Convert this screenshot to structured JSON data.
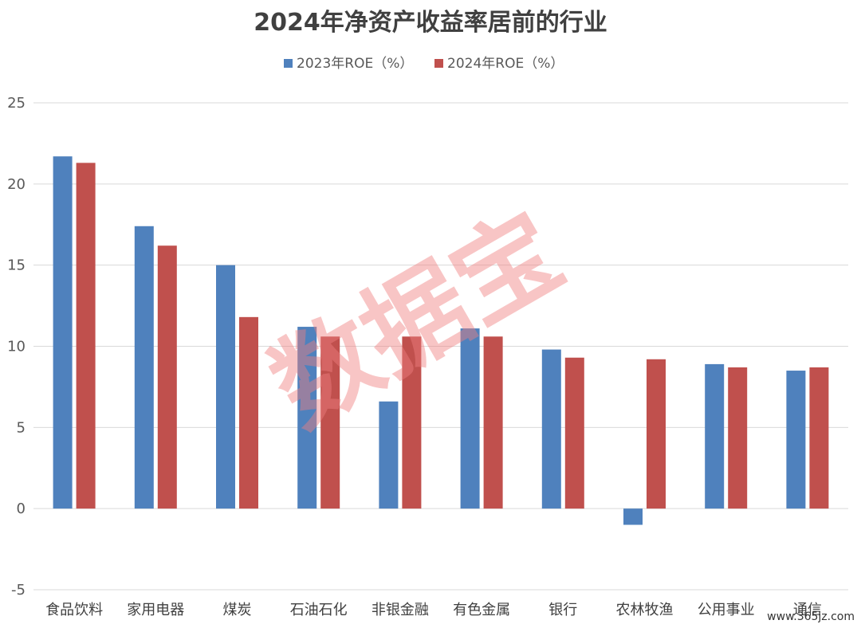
{
  "chart_data": {
    "type": "bar",
    "title": "2024年净资产收益率居前的行业",
    "categories": [
      "食品饮料",
      "家用电器",
      "煤炭",
      "石油石化",
      "非银金融",
      "有色金属",
      "银行",
      "农林牧渔",
      "公用事业",
      "通信"
    ],
    "series": [
      {
        "name": "2023年ROE（%）",
        "color": "#4f81bd",
        "values": [
          21.7,
          17.4,
          15.0,
          11.2,
          6.6,
          11.1,
          9.8,
          -1.0,
          8.9,
          8.5
        ]
      },
      {
        "name": "2024年ROE（%）",
        "color": "#c0504d",
        "values": [
          21.3,
          16.2,
          11.8,
          10.6,
          10.6,
          10.6,
          9.3,
          9.2,
          8.7,
          8.7
        ]
      }
    ],
    "ylim": [
      -5,
      25
    ],
    "yticks": [
      "25",
      "20",
      "15",
      "10",
      "5",
      "0",
      "-5"
    ],
    "ytick_values": [
      25,
      20,
      15,
      10,
      5,
      0,
      -5
    ],
    "grid": true,
    "legend_position": "top-center"
  },
  "watermark": "数据宝",
  "site_mark": "www.365jz.com"
}
